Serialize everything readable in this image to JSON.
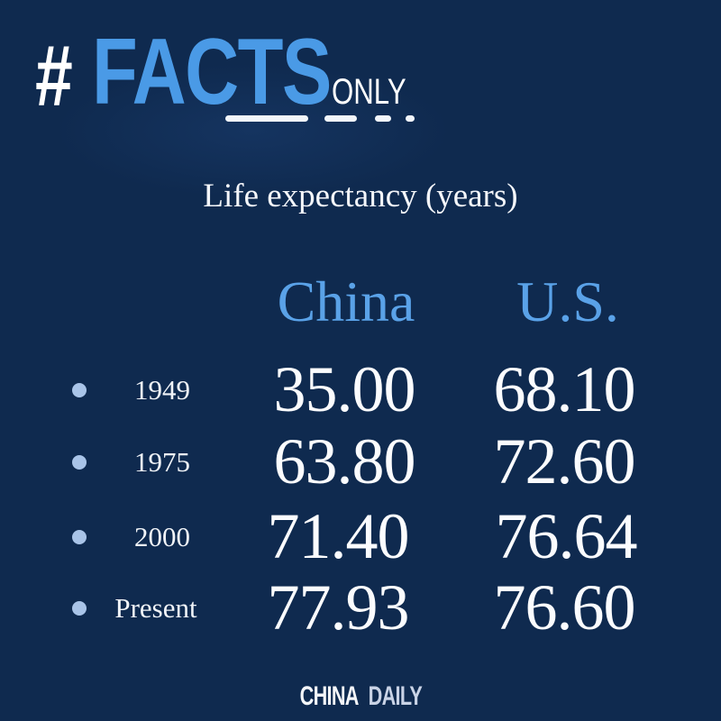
{
  "logo": {
    "hash": "#",
    "facts": "FACTS",
    "only": "ONLY"
  },
  "colors": {
    "background": "#0f2a4f",
    "accent": "#4a9ae6",
    "text": "#ffffff"
  },
  "chart_data": {
    "type": "table",
    "title": "Life expectancy (years)",
    "columns": [
      "China",
      "U.S."
    ],
    "rows": [
      {
        "label": "1949",
        "values": [
          "35.00",
          "68.10"
        ]
      },
      {
        "label": "1975",
        "values": [
          "63.80",
          "72.60"
        ]
      },
      {
        "label": "2000",
        "values": [
          "71.40",
          "76.64"
        ]
      },
      {
        "label": "Present",
        "values": [
          "77.93",
          "76.60"
        ]
      }
    ]
  },
  "brand": {
    "part1": "CHINA",
    "part2": "DAILY"
  }
}
